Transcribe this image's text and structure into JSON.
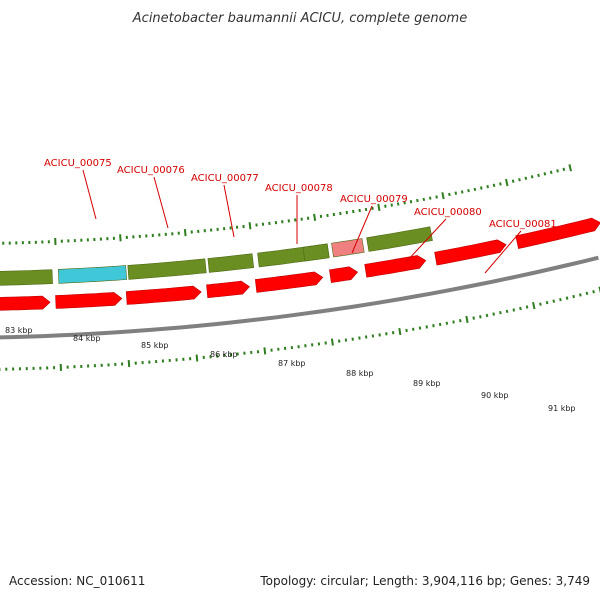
{
  "title": "Acinetobacter baumannii ACICU, complete genome",
  "accession": "Accession: NC_010611",
  "summary": "Topology: circular; Length: 3,904,116 bp; Genes: 3,749",
  "colors": {
    "forward_feature": "#6b8e23",
    "forward_highlight_1": "#40c8d8",
    "forward_highlight_2": "#f08080",
    "reverse_feature": "#ff0000",
    "backbone": "#808080",
    "tick": "#2e7d1e",
    "gene_label": "#d40000"
  },
  "gene_labels": [
    "ACICU_00075",
    "ACICU_00076",
    "ACICU_00077",
    "ACICU_00078",
    "ACICU_00079",
    "ACICU_00080",
    "ACICU_00081"
  ],
  "kbp_labels": [
    "83 kbp",
    "84 kbp",
    "85 kbp",
    "86 kbp",
    "87 kbp",
    "88 kbp",
    "89 kbp",
    "90 kbp",
    "91 kbp"
  ]
}
